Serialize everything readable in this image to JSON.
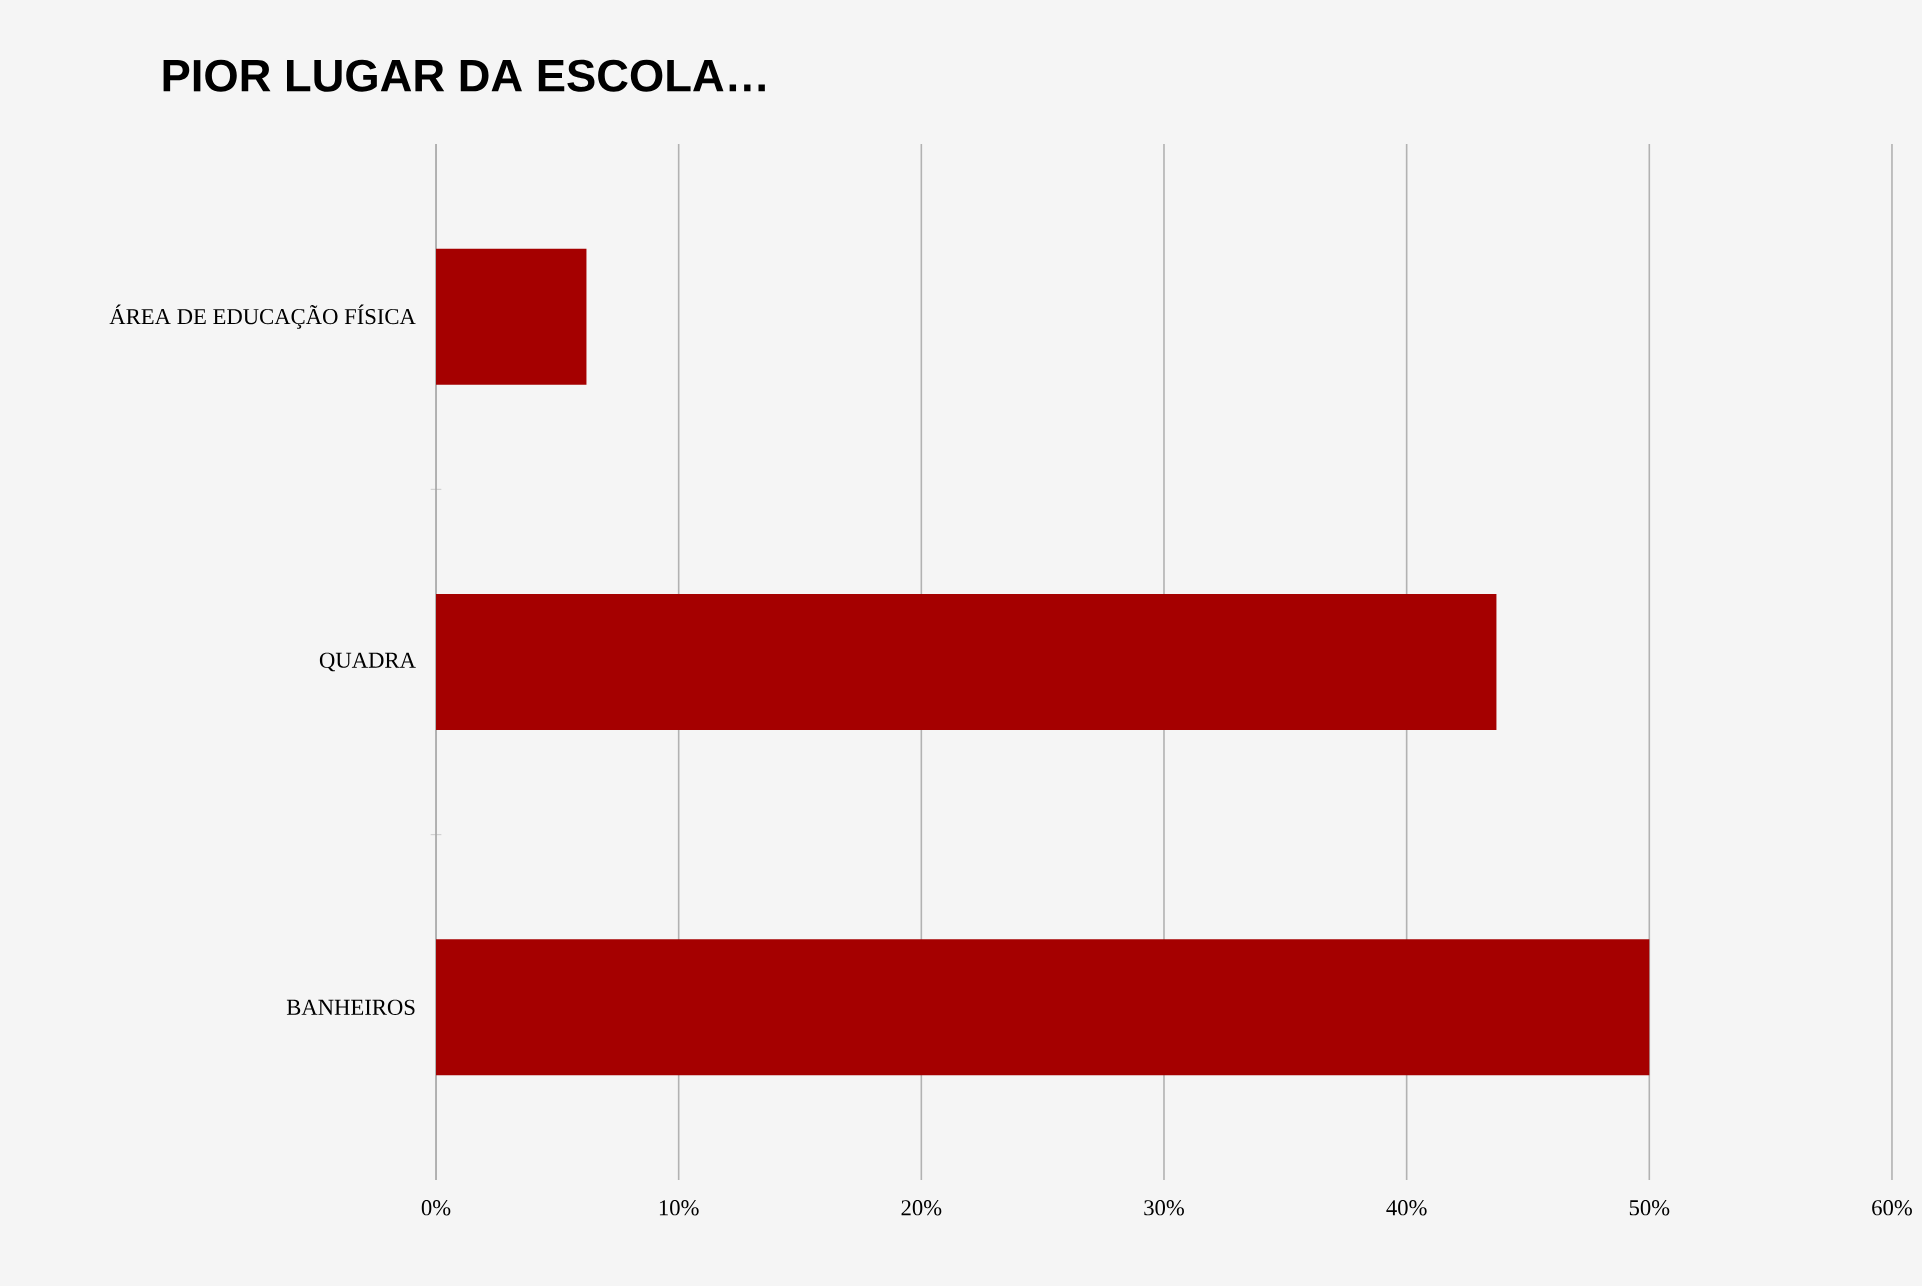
{
  "chart_data": {
    "type": "bar",
    "orientation": "horizontal",
    "title": "PIOR LUGAR DA ESCOLA…",
    "categories": [
      "ÁREA DE EDUCAÇÃO FÍSICA",
      "QUADRA",
      "BANHEIROS"
    ],
    "values": [
      6.2,
      43.7,
      50
    ],
    "color": "#a50000",
    "xlim": [
      0,
      60
    ],
    "xticks": [
      {
        "value": 0,
        "label": "0%"
      },
      {
        "value": 10,
        "label": "10%"
      },
      {
        "value": 20,
        "label": "20%"
      },
      {
        "value": 30,
        "label": "30%"
      },
      {
        "value": 40,
        "label": "40%"
      },
      {
        "value": 50,
        "label": "50%"
      },
      {
        "value": 60,
        "label": "60%"
      }
    ],
    "grid": "x"
  }
}
